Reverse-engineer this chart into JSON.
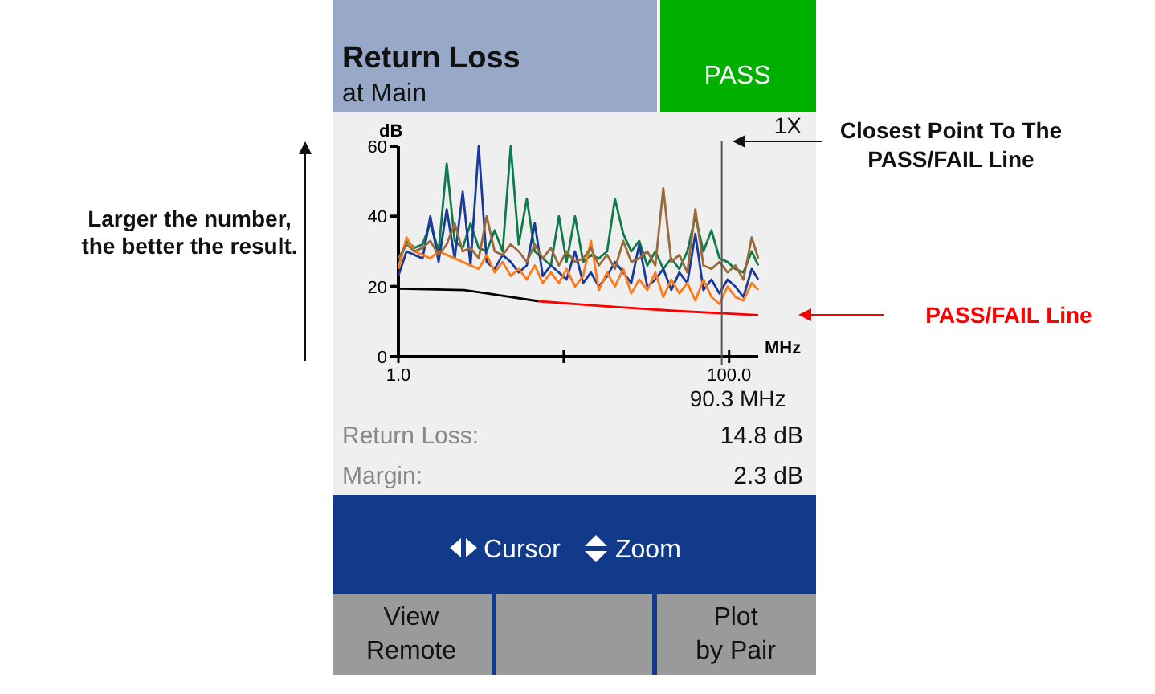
{
  "chart_data": {
    "type": "line",
    "title": "Return Loss",
    "subtitle": "at Main",
    "xlabel": "MHz",
    "ylabel": "dB",
    "log": "x",
    "x": [
      1.0,
      1.12,
      1.25,
      1.4,
      1.56,
      1.75,
      1.96,
      2.19,
      2.45,
      2.73,
      3.06,
      3.42,
      3.82,
      4.27,
      4.78,
      5.34,
      5.98,
      6.68,
      7.47,
      8.36,
      9.35,
      10.4,
      11.7,
      13.1,
      14.6,
      16.3,
      18.3,
      20.4,
      22.9,
      25.6,
      28.6,
      32.0,
      35.8,
      40.0,
      44.7,
      50.0,
      55.9,
      62.5,
      69.9,
      78.2,
      87.4,
      97.8,
      109,
      122,
      137,
      150
    ],
    "series": [
      {
        "color": "#0f7a4a",
        "values": [
          26,
          33,
          31,
          32,
          38,
          30,
          55,
          33,
          31,
          38,
          31,
          30,
          36,
          30,
          60,
          32,
          45,
          30,
          28,
          26,
          40,
          27,
          40,
          27,
          29,
          28,
          30,
          45,
          35,
          30,
          33,
          26,
          30,
          25,
          28,
          25,
          30,
          40,
          30,
          36,
          28,
          27,
          25,
          24,
          30,
          26
        ]
      },
      {
        "color": "#1a3a9a",
        "values": [
          23,
          30,
          29,
          28,
          40,
          27,
          42,
          28,
          47,
          26,
          60,
          27,
          25,
          29,
          27,
          24,
          26,
          38,
          23,
          26,
          24,
          22,
          30,
          21,
          24,
          20,
          23,
          27,
          24,
          21,
          32,
          20,
          22,
          25,
          19,
          24,
          21,
          35,
          19,
          22,
          18,
          22,
          20,
          17,
          25,
          22
        ]
      },
      {
        "color": "#ff7a1a",
        "values": [
          25,
          34,
          30,
          29,
          28,
          30,
          29,
          28,
          27,
          26,
          25,
          29,
          24,
          27,
          23,
          25,
          22,
          26,
          21,
          24,
          21,
          25,
          20,
          23,
          33,
          19,
          24,
          20,
          25,
          18,
          22,
          19,
          24,
          17,
          22,
          18,
          21,
          16,
          22,
          17,
          15,
          20,
          17,
          16,
          21,
          19
        ]
      },
      {
        "color": "#9a6a3a",
        "values": [
          28,
          32,
          30,
          31,
          33,
          29,
          32,
          38,
          30,
          31,
          28,
          40,
          30,
          29,
          32,
          30,
          27,
          32,
          28,
          31,
          26,
          30,
          27,
          28,
          31,
          26,
          29,
          25,
          33,
          27,
          28,
          30,
          26,
          48,
          27,
          29,
          24,
          42,
          26,
          25,
          27,
          24,
          26,
          22,
          34,
          28
        ]
      },
      {
        "color": "#000000",
        "x": [
          1,
          2.5,
          3.6,
          7.05
        ],
        "values": [
          19.4,
          19.0,
          17.9,
          15.8
        ]
      },
      {
        "color": "#ff0000",
        "x": [
          7.05,
          16,
          49,
          150
        ],
        "values": [
          15.8,
          14.5,
          13.0,
          11.8
        ]
      }
    ],
    "xlim": [
      1,
      150
    ],
    "ylim": [
      0,
      60
    ],
    "xticks": [
      {
        "value": 1,
        "label": "1.0"
      },
      {
        "value": 10,
        "label": null
      },
      {
        "value": 100,
        "label": "100.0"
      }
    ],
    "yticks": [
      0,
      20,
      40,
      60
    ],
    "grid": false,
    "marker": "none",
    "line_style": "solid",
    "ref_lines": [
      {
        "axis": "x",
        "value": 90.3,
        "label": "90.3 MHz",
        "color": "#555555"
      }
    ],
    "annotations": [
      "1X",
      "Larger the number,\nthe better the result.",
      "Closest Point To The\nPASS/FAIL Line",
      "PASS/FAIL Line",
      "PASS",
      "Return Loss:",
      "14.8 dB",
      "Margin:",
      "2.3 dB",
      "Cursor",
      "Zoom",
      "View\nRemote",
      "Plot\nby Pair"
    ]
  }
}
